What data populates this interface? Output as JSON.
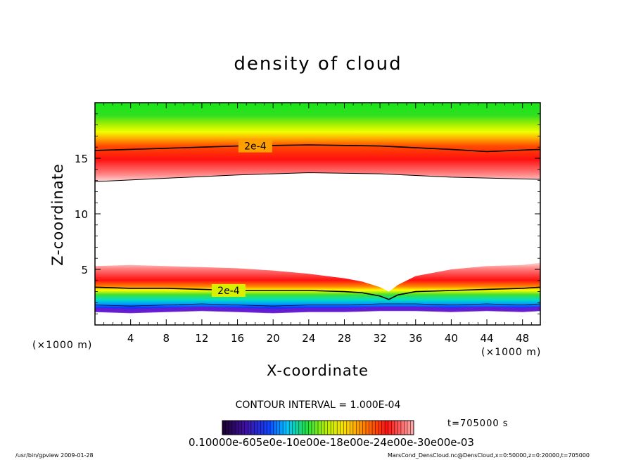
{
  "chart_data": {
    "type": "heatmap",
    "title": "density of cloud",
    "xlabel": "X-coordinate",
    "ylabel": "Z-coordinate",
    "xunit": "(×1000 m)",
    "yunit": "(×1000 m)",
    "xlim": [
      0,
      50
    ],
    "ylim": [
      0,
      20
    ],
    "xticks": [
      4,
      8,
      12,
      16,
      20,
      24,
      28,
      32,
      36,
      40,
      44,
      48
    ],
    "yticks": [
      5,
      10,
      15
    ],
    "contour_interval_label": "CONTOUR INTERVAL = 1.000E-04",
    "contour_labels": [
      {
        "text": "2e-4",
        "x": 18,
        "z": 16.1
      },
      {
        "text": "2e-4",
        "x": 15,
        "z": 3.1
      }
    ],
    "upper_layer_contour": {
      "x": [
        0,
        8,
        16,
        24,
        32,
        40,
        44,
        50
      ],
      "z": [
        15.7,
        15.9,
        16.1,
        16.2,
        16.1,
        15.8,
        15.6,
        15.8
      ]
    },
    "upper_layer_bottom": {
      "x": [
        0,
        8,
        16,
        24,
        32,
        40,
        50
      ],
      "z": [
        12.9,
        13.2,
        13.5,
        13.7,
        13.6,
        13.3,
        13.1
      ]
    },
    "lower_layer_top": {
      "x": [
        0,
        4,
        8,
        12,
        16,
        20,
        24,
        28,
        30,
        32,
        33,
        34,
        36,
        40,
        44,
        48,
        50
      ],
      "z": [
        5.3,
        5.4,
        5.3,
        5.2,
        5.1,
        4.9,
        4.6,
        4.2,
        3.9,
        3.4,
        3.0,
        3.6,
        4.4,
        5.0,
        5.3,
        5.4,
        5.6
      ]
    },
    "lower_layer_contour": {
      "x": [
        0,
        4,
        8,
        12,
        16,
        20,
        24,
        28,
        30,
        32,
        33,
        34,
        36,
        40,
        44,
        48,
        50
      ],
      "z": [
        3.4,
        3.3,
        3.3,
        3.2,
        3.1,
        3.1,
        3.1,
        3.0,
        2.9,
        2.6,
        2.3,
        2.7,
        3.0,
        3.1,
        3.2,
        3.3,
        3.4
      ]
    },
    "lower_layer_bottom": {
      "x": [
        0,
        4,
        8,
        12,
        16,
        20,
        24,
        28,
        32,
        36,
        40,
        44,
        48,
        50
      ],
      "z": [
        1.2,
        1.1,
        1.2,
        1.3,
        1.2,
        1.1,
        1.2,
        1.2,
        1.3,
        1.3,
        1.2,
        1.3,
        1.2,
        1.3
      ]
    },
    "colorbar": {
      "min": 0.0,
      "max": 0.0003,
      "labels_text": "0.10000e-605e0e-10e00e-18e00e-24e00e-30e00e-03"
    },
    "colors": {
      "red": "#ff0000",
      "orange": "#ff8c00",
      "yellow": "#ffff00",
      "green": "#19e619",
      "cyan": "#00d2ff",
      "blue": "#1030ff",
      "purple": "#6a1bd0"
    }
  },
  "time_label": "t=705000  s",
  "footer": {
    "left": "/usr/bin/gpview   2009-01-28",
    "right": "MarsCond_DensCloud.nc@DensCloud,x=0:50000,z=0:20000,t=705000"
  }
}
